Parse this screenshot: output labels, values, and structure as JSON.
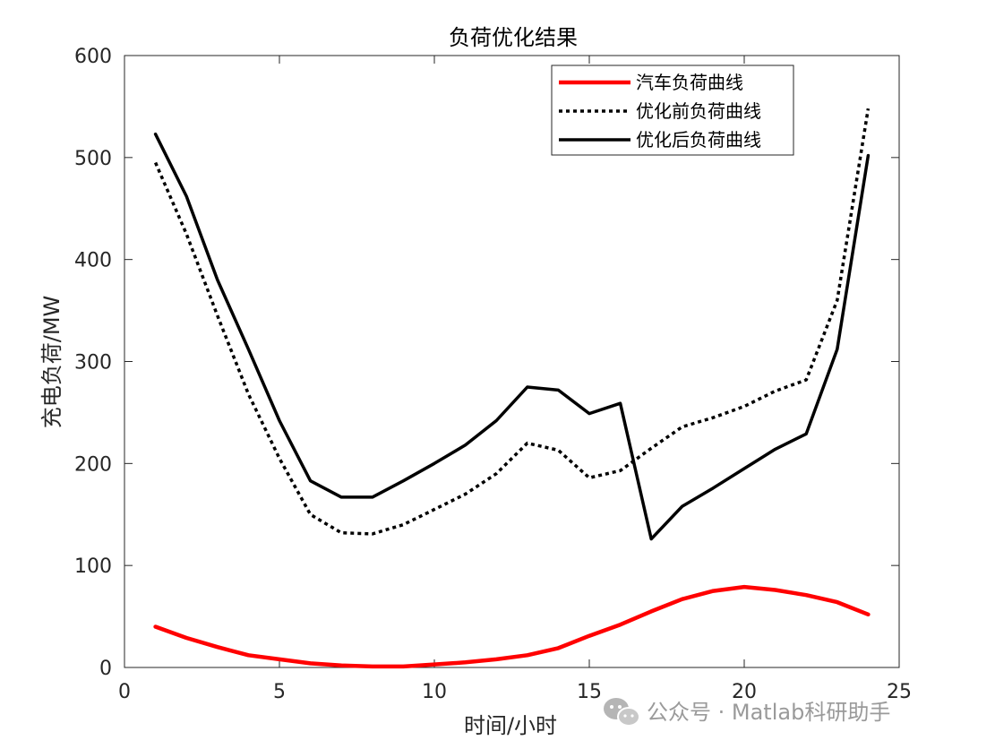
{
  "chart_data": {
    "type": "line",
    "title": "负荷优化结果",
    "xlabel": "时间/小时",
    "ylabel": "充电负荷/MW",
    "xlim": [
      0,
      25
    ],
    "ylim": [
      0,
      600
    ],
    "xticks": [
      0,
      5,
      10,
      15,
      20,
      25
    ],
    "yticks": [
      0,
      100,
      200,
      300,
      400,
      500,
      600
    ],
    "grid": false,
    "legend_position": "top-right",
    "x": [
      1,
      2,
      3,
      4,
      5,
      6,
      7,
      8,
      9,
      10,
      11,
      12,
      13,
      14,
      15,
      16,
      17,
      18,
      19,
      20,
      21,
      22,
      23,
      24
    ],
    "series": [
      {
        "name": "汽车负荷曲线",
        "color": "#ff0000",
        "style": "solid",
        "values": [
          40,
          29,
          20,
          12,
          8,
          4,
          2,
          1,
          1,
          3,
          5,
          8,
          12,
          19,
          31,
          42,
          55,
          67,
          75,
          79,
          76,
          71,
          64,
          52
        ]
      },
      {
        "name": "优化前负荷曲线",
        "color": "#000000",
        "style": "dotted",
        "values": [
          495,
          425,
          345,
          268,
          205,
          150,
          132,
          131,
          140,
          155,
          170,
          190,
          220,
          213,
          186,
          193,
          215,
          236,
          245,
          256,
          271,
          282,
          360,
          548
        ]
      },
      {
        "name": "优化后负荷曲线",
        "color": "#000000",
        "style": "solid",
        "values": [
          523,
          462,
          380,
          312,
          242,
          183,
          167,
          167,
          183,
          200,
          218,
          242,
          275,
          272,
          249,
          259,
          126,
          158,
          176,
          195,
          214,
          229,
          312,
          502
        ]
      }
    ]
  },
  "watermark": {
    "text": "公众号 · Matlab科研助手",
    "icon": "wechat-icon"
  }
}
